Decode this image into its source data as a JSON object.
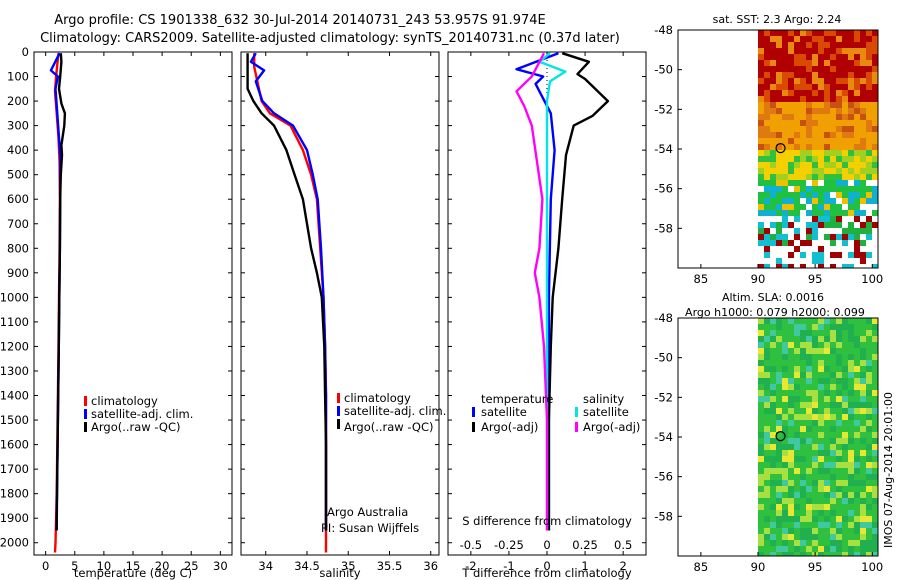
{
  "header": {
    "line1": "Argo profile: CS 1901338_632 30-Jul-2014 20140731_243 53.957S 91.974E",
    "line2": "Climatology: CARS2009. Satellite-adjusted climatology: synTS_20140731.nc (0.37d later)"
  },
  "colors": {
    "climatology": "#ff0000",
    "satellite": "#0000ff",
    "argo": "#000000",
    "cyan": "#00e5e5",
    "magenta": "#ff00ff"
  },
  "depth_axis": {
    "range": [
      0,
      2050
    ],
    "ticks": [
      0,
      100,
      200,
      300,
      400,
      500,
      600,
      700,
      800,
      900,
      1000,
      1100,
      1200,
      1300,
      1400,
      1500,
      1600,
      1700,
      1800,
      1900,
      2000
    ]
  },
  "chart_data": [
    {
      "type": "line",
      "name": "temperature-profile",
      "xlabel": "temperature (deg C)",
      "xlim": [
        -2,
        32
      ],
      "xticks": [
        0,
        5,
        10,
        15,
        20,
        25,
        30
      ],
      "ylim": [
        0,
        2050
      ],
      "legend": [
        "climatology",
        "satellite-adj. clim.",
        "Argo(..raw -QC)"
      ],
      "series": [
        {
          "name": "climatology",
          "color": "#ff0000",
          "points": [
            [
              2.2,
              5
            ],
            [
              2.0,
              50
            ],
            [
              1.8,
              100
            ],
            [
              1.6,
              160
            ],
            [
              1.9,
              250
            ],
            [
              2.2,
              350
            ],
            [
              2.4,
              450
            ],
            [
              2.45,
              600
            ],
            [
              2.4,
              800
            ],
            [
              2.3,
              1000
            ],
            [
              2.2,
              1200
            ],
            [
              2.1,
              1400
            ],
            [
              2.0,
              1600
            ],
            [
              1.9,
              1800
            ],
            [
              1.7,
              2000
            ],
            [
              1.6,
              2040
            ]
          ]
        },
        {
          "name": "satellite-adj. clim.",
          "color": "#0000ff",
          "points": [
            [
              2.4,
              5
            ],
            [
              0.9,
              75
            ],
            [
              2.1,
              100
            ],
            [
              1.7,
              150
            ],
            [
              2.0,
              250
            ],
            [
              2.3,
              350
            ],
            [
              2.5,
              420
            ],
            [
              2.5,
              600
            ],
            [
              2.45,
              800
            ],
            [
              2.35,
              1000
            ],
            [
              2.25,
              1200
            ],
            [
              2.15,
              1400
            ],
            [
              2.05,
              1600
            ],
            [
              1.95,
              1800
            ],
            [
              1.85,
              1950
            ]
          ]
        },
        {
          "name": "Argo(..raw -QC)",
          "color": "#000000",
          "points": [
            [
              2.6,
              5
            ],
            [
              2.7,
              40
            ],
            [
              2.5,
              100
            ],
            [
              2.3,
              150
            ],
            [
              2.7,
              210
            ],
            [
              3.3,
              250
            ],
            [
              3.2,
              300
            ],
            [
              2.7,
              380
            ],
            [
              2.8,
              420
            ],
            [
              2.6,
              500
            ],
            [
              2.5,
              600
            ],
            [
              2.45,
              800
            ],
            [
              2.35,
              1000
            ],
            [
              2.25,
              1200
            ],
            [
              2.15,
              1400
            ],
            [
              2.05,
              1600
            ],
            [
              1.95,
              1800
            ],
            [
              1.9,
              1950
            ]
          ]
        }
      ]
    },
    {
      "type": "line",
      "name": "salinity-profile",
      "xlabel": "salinity",
      "xlim": [
        33.7,
        36.1
      ],
      "xticks": [
        34,
        34.5,
        35,
        35.5,
        36
      ],
      "xtick_labels": [
        "34",
        "34.5",
        "35",
        "35.5",
        "36"
      ],
      "ylim": [
        0,
        2050
      ],
      "legend": [
        "climatology",
        "satellite-adj. clim.",
        "Argo(..raw -QC)"
      ],
      "series": [
        {
          "name": "climatology",
          "color": "#ff0000",
          "points": [
            [
              33.86,
              5
            ],
            [
              33.86,
              60
            ],
            [
              33.95,
              200
            ],
            [
              34.05,
              250
            ],
            [
              34.3,
              300
            ],
            [
              34.45,
              400
            ],
            [
              34.55,
              500
            ],
            [
              34.62,
              600
            ],
            [
              34.66,
              800
            ],
            [
              34.7,
              1000
            ],
            [
              34.72,
              1200
            ],
            [
              34.73,
              1400
            ],
            [
              34.73,
              1600
            ],
            [
              34.73,
              1800
            ],
            [
              34.73,
              2040
            ]
          ]
        },
        {
          "name": "satellite-adj. clim.",
          "color": "#0000ff",
          "points": [
            [
              33.88,
              5
            ],
            [
              33.82,
              40
            ],
            [
              33.98,
              75
            ],
            [
              33.88,
              120
            ],
            [
              33.96,
              200
            ],
            [
              34.1,
              250
            ],
            [
              34.33,
              300
            ],
            [
              34.5,
              400
            ],
            [
              34.57,
              500
            ],
            [
              34.63,
              600
            ],
            [
              34.67,
              800
            ],
            [
              34.7,
              1000
            ],
            [
              34.72,
              1200
            ],
            [
              34.73,
              1400
            ],
            [
              34.73,
              1600
            ],
            [
              34.73,
              1800
            ],
            [
              34.73,
              1950
            ]
          ]
        },
        {
          "name": "Argo(..raw -QC)",
          "color": "#000000",
          "points": [
            [
              33.78,
              5
            ],
            [
              33.78,
              150
            ],
            [
              33.85,
              200
            ],
            [
              33.95,
              250
            ],
            [
              34.1,
              300
            ],
            [
              34.25,
              400
            ],
            [
              34.35,
              500
            ],
            [
              34.45,
              600
            ],
            [
              34.5,
              700
            ],
            [
              34.55,
              800
            ],
            [
              34.62,
              900
            ],
            [
              34.68,
              1000
            ],
            [
              34.71,
              1200
            ],
            [
              34.72,
              1400
            ],
            [
              34.73,
              1600
            ],
            [
              34.73,
              1800
            ],
            [
              34.73,
              1950
            ]
          ]
        }
      ]
    },
    {
      "type": "line",
      "name": "difference-profile",
      "xlabel": "T difference from climatology",
      "xlim": [
        -2.6,
        2.6
      ],
      "xticks": [
        -2,
        -1,
        0,
        1,
        2
      ],
      "xtick_labels": [
        "-2",
        "-1",
        "0",
        "1",
        "2"
      ],
      "x2label": "S difference from climatology",
      "x2ticks": [
        -0.5,
        -0.25,
        0,
        0.25,
        0.5
      ],
      "x2tick_labels": [
        "-0.5",
        "-0.25",
        "0",
        "0.25",
        "0.5"
      ],
      "ylim": [
        0,
        2050
      ],
      "legend_titles": [
        "temperature",
        "salinity"
      ],
      "legend": [
        "satellite",
        "Argo(-adj)",
        "satellite",
        "Argo(-adj)"
      ],
      "series": [
        {
          "name": "T satellite",
          "color": "#0000ff",
          "points": [
            [
              0.3,
              5
            ],
            [
              -0.8,
              70
            ],
            [
              -0.1,
              100
            ],
            [
              -0.3,
              130
            ],
            [
              0.1,
              250
            ],
            [
              0.2,
              400
            ],
            [
              0.1,
              600
            ],
            [
              0.05,
              1000
            ],
            [
              0.05,
              1500
            ],
            [
              0.05,
              1950
            ]
          ]
        },
        {
          "name": "T Argo(-adj)",
          "color": "#000000",
          "points": [
            [
              0.4,
              5
            ],
            [
              1.1,
              40
            ],
            [
              0.8,
              90
            ],
            [
              1.0,
              110
            ],
            [
              1.6,
              200
            ],
            [
              1.2,
              260
            ],
            [
              0.7,
              300
            ],
            [
              0.5,
              420
            ],
            [
              0.4,
              600
            ],
            [
              0.3,
              800
            ],
            [
              0.15,
              1000
            ],
            [
              0.1,
              1200
            ],
            [
              0.05,
              1500
            ],
            [
              0.05,
              1950
            ]
          ]
        },
        {
          "name": "S satellite",
          "color": "#00e5e5",
          "points": [
            [
              0.02,
              5
            ],
            [
              -0.05,
              40
            ],
            [
              0.12,
              80
            ],
            [
              0.02,
              120
            ],
            [
              0.0,
              200
            ],
            [
              0.0,
              400
            ],
            [
              0.0,
              800
            ],
            [
              0.0,
              1200
            ],
            [
              0.0,
              1600
            ],
            [
              0.0,
              1950
            ]
          ]
        },
        {
          "name": "S Argo(-adj)",
          "color": "#ff00ff",
          "points": [
            [
              -0.02,
              5
            ],
            [
              -0.1,
              100
            ],
            [
              -0.2,
              160
            ],
            [
              -0.15,
              220
            ],
            [
              -0.1,
              300
            ],
            [
              -0.03,
              600
            ],
            [
              -0.05,
              800
            ],
            [
              -0.08,
              900
            ],
            [
              -0.05,
              1000
            ],
            [
              -0.02,
              1200
            ],
            [
              0.0,
              1500
            ],
            [
              0.0,
              1950
            ]
          ]
        }
      ]
    },
    {
      "type": "heatmap",
      "name": "sst-map",
      "title": "sat. SST: 2.3 Argo: 2.24",
      "xlim": [
        83,
        100.5
      ],
      "ylim": [
        -60,
        -48
      ],
      "xticks": [
        85,
        90,
        95,
        100
      ],
      "yticks": [
        -48,
        -50,
        -52,
        -54,
        -56,
        -58
      ],
      "marker": {
        "lon": 91.974,
        "lat": -53.957
      }
    },
    {
      "type": "heatmap",
      "name": "sla-map",
      "title_line1": "Altim. SLA: 0.0016",
      "title_line2": "Argo h1000: 0.079 h2000: 0.099",
      "xlim": [
        83,
        100.5
      ],
      "ylim": [
        -60,
        -48
      ],
      "xticks": [
        85,
        90,
        95,
        100
      ],
      "yticks": [
        -48,
        -50,
        -52,
        -54,
        -56,
        -58
      ],
      "marker": {
        "lon": 91.974,
        "lat": -53.957
      }
    }
  ],
  "footer": {
    "argo_line1": "Argo Australia",
    "argo_line2": "PI: Susan Wijffels",
    "imos_stamp": "IMOS 07-Aug-2014 20:01:00"
  }
}
